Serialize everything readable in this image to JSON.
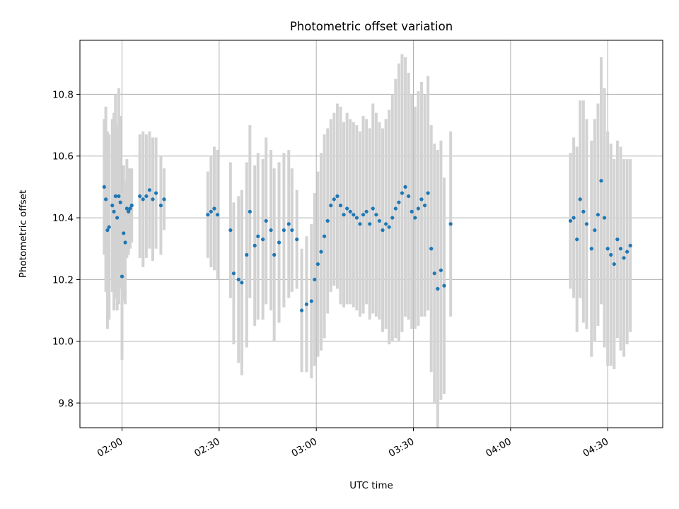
{
  "chart_data": {
    "type": "scatter",
    "title": "Photometric offset variation",
    "xlabel": "UTC time",
    "ylabel": "Photometric offset",
    "x_is_time": true,
    "xlim": [
      "01:47",
      "04:47"
    ],
    "ylim": [
      9.72,
      10.975
    ],
    "x_ticks": [
      "02:00",
      "02:30",
      "03:00",
      "03:30",
      "04:00",
      "04:30"
    ],
    "y_ticks": [
      "9.8",
      "10.0",
      "10.2",
      "10.4",
      "10.6",
      "10.8"
    ],
    "grid": true,
    "colors": {
      "points": "#1f77b4",
      "errorbars": "#d3d3d3",
      "grid": "#b0b0b0"
    },
    "series": [
      {
        "marker": "point",
        "x_time": [
          "01:54:30",
          "01:55:00",
          "01:55:30",
          "01:56:00",
          "01:57:00",
          "01:57:30",
          "01:58:00",
          "01:58:30",
          "01:59:00",
          "01:59:30",
          "02:00:00",
          "02:00:30",
          "02:01:00",
          "02:01:30",
          "02:02:00",
          "02:02:30",
          "02:03:00",
          "02:05:30",
          "02:06:30",
          "02:07:30",
          "02:08:30",
          "02:09:30",
          "02:10:30",
          "02:12:00",
          "02:13:00",
          "02:26:30",
          "02:27:30",
          "02:28:30",
          "02:29:30",
          "02:33:30",
          "02:34:30",
          "02:36:00",
          "02:37:00",
          "02:38:30",
          "02:39:30",
          "02:41:00",
          "02:42:00",
          "02:43:30",
          "02:44:30",
          "02:46:00",
          "02:47:00",
          "02:48:30",
          "02:50:00",
          "02:51:30",
          "02:52:30",
          "02:54:00",
          "02:55:30",
          "02:57:00",
          "02:58:30",
          "02:59:30",
          "03:00:30",
          "03:01:30",
          "03:02:30",
          "03:03:30",
          "03:04:30",
          "03:05:30",
          "03:06:30",
          "03:07:30",
          "03:08:30",
          "03:09:30",
          "03:10:30",
          "03:11:30",
          "03:12:30",
          "03:13:30",
          "03:14:30",
          "03:15:30",
          "03:16:30",
          "03:17:30",
          "03:18:30",
          "03:19:30",
          "03:20:30",
          "03:21:30",
          "03:22:30",
          "03:23:30",
          "03:24:30",
          "03:25:30",
          "03:26:30",
          "03:27:30",
          "03:28:30",
          "03:29:30",
          "03:30:30",
          "03:31:30",
          "03:32:30",
          "03:33:30",
          "03:34:30",
          "03:35:30",
          "03:36:30",
          "03:37:30",
          "03:38:30",
          "03:39:30",
          "03:41:30",
          "04:18:30",
          "04:19:30",
          "04:20:30",
          "04:21:30",
          "04:22:30",
          "04:23:30",
          "04:25:00",
          "04:26:00",
          "04:27:00",
          "04:28:00",
          "04:29:00",
          "04:30:00",
          "04:31:00",
          "04:32:00",
          "04:33:00",
          "04:34:00",
          "04:35:00",
          "04:36:00",
          "04:37:00"
        ],
        "y": [
          10.5,
          10.46,
          10.36,
          10.37,
          10.44,
          10.42,
          10.47,
          10.4,
          10.47,
          10.45,
          10.21,
          10.35,
          10.32,
          10.43,
          10.42,
          10.43,
          10.44,
          10.47,
          10.46,
          10.47,
          10.49,
          10.46,
          10.48,
          10.44,
          10.46,
          10.41,
          10.42,
          10.43,
          10.41,
          10.36,
          10.22,
          10.2,
          10.19,
          10.28,
          10.42,
          10.31,
          10.34,
          10.33,
          10.39,
          10.36,
          10.28,
          10.32,
          10.36,
          10.38,
          10.36,
          10.33,
          10.1,
          10.12,
          10.13,
          10.2,
          10.25,
          10.29,
          10.34,
          10.39,
          10.44,
          10.46,
          10.47,
          10.44,
          10.41,
          10.43,
          10.42,
          10.41,
          10.4,
          10.38,
          10.41,
          10.42,
          10.38,
          10.43,
          10.41,
          10.39,
          10.36,
          10.38,
          10.37,
          10.4,
          10.43,
          10.45,
          10.48,
          10.5,
          10.47,
          10.42,
          10.4,
          10.43,
          10.46,
          10.44,
          10.48,
          10.3,
          10.22,
          10.17,
          10.23,
          10.18,
          10.38,
          10.39,
          10.4,
          10.33,
          10.46,
          10.42,
          10.38,
          10.3,
          10.36,
          10.41,
          10.52,
          10.4,
          10.3,
          10.28,
          10.25,
          10.33,
          10.3,
          10.27,
          10.29,
          10.31
        ],
        "yerr": [
          0.22,
          0.3,
          0.32,
          0.3,
          0.28,
          0.32,
          0.33,
          0.3,
          0.35,
          0.28,
          0.27,
          0.22,
          0.2,
          0.16,
          0.14,
          0.13,
          0.12,
          0.2,
          0.22,
          0.2,
          0.19,
          0.2,
          0.18,
          0.16,
          0.1,
          0.14,
          0.18,
          0.2,
          0.21,
          0.22,
          0.23,
          0.27,
          0.3,
          0.3,
          0.28,
          0.26,
          0.27,
          0.26,
          0.27,
          0.26,
          0.28,
          0.26,
          0.25,
          0.24,
          0.2,
          0.16,
          0.2,
          0.22,
          0.25,
          0.28,
          0.3,
          0.32,
          0.33,
          0.3,
          0.28,
          0.28,
          0.3,
          0.32,
          0.3,
          0.31,
          0.3,
          0.3,
          0.3,
          0.3,
          0.32,
          0.3,
          0.31,
          0.34,
          0.33,
          0.32,
          0.33,
          0.34,
          0.38,
          0.4,
          0.42,
          0.45,
          0.45,
          0.42,
          0.4,
          0.38,
          0.36,
          0.38,
          0.38,
          0.36,
          0.38,
          0.4,
          0.42,
          0.45,
          0.42,
          0.35,
          0.3,
          0.22,
          0.26,
          0.3,
          0.32,
          0.36,
          0.34,
          0.35,
          0.36,
          0.36,
          0.4,
          0.42,
          0.38,
          0.36,
          0.34,
          0.32,
          0.33,
          0.32,
          0.3,
          0.28
        ]
      }
    ]
  }
}
